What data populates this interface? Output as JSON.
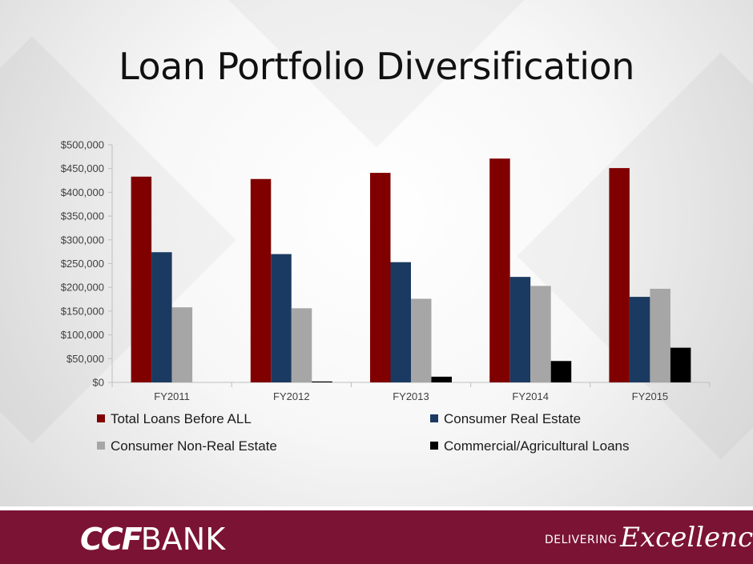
{
  "slide": {
    "title": "Loan Portfolio Diversification",
    "logo": {
      "part1": "CCF",
      "part2": "BANK"
    },
    "tagline": {
      "part1": "DELIVERING",
      "part2": "Excellence"
    }
  },
  "colors": {
    "total": "#800000",
    "consumer_re": "#1b3a61",
    "consumer_nre": "#a6a6a6",
    "commercial": "#000000",
    "footer": "#7b1335"
  },
  "chart_data": {
    "type": "bar",
    "title": "",
    "xlabel": "",
    "ylabel": "",
    "ylim": [
      0,
      500000
    ],
    "yticks": [
      0,
      50000,
      100000,
      150000,
      200000,
      250000,
      300000,
      350000,
      400000,
      450000,
      500000
    ],
    "ytick_labels": [
      "$0",
      "$50,000",
      "$100,000",
      "$150,000",
      "$200,000",
      "$250,000",
      "$300,000",
      "$350,000",
      "$400,000",
      "$450,000",
      "$500,000"
    ],
    "categories": [
      "FY2011",
      "FY2012",
      "FY2013",
      "FY2014",
      "FY2015"
    ],
    "legend_position": "bottom",
    "series": [
      {
        "name": "Total Loans Before ALL",
        "color": "#800000",
        "values": [
          433000,
          428000,
          441000,
          471000,
          451000
        ]
      },
      {
        "name": "Consumer Real Estate",
        "color": "#1b3a61",
        "values": [
          274000,
          270000,
          253000,
          222000,
          180000
        ]
      },
      {
        "name": "Consumer Non-Real Estate",
        "color": "#a6a6a6",
        "values": [
          158000,
          156000,
          176000,
          203000,
          197000
        ]
      },
      {
        "name": "Commercial/Agricultural Loans",
        "color": "#000000",
        "values": [
          0,
          2000,
          12000,
          45000,
          73000
        ]
      }
    ]
  }
}
